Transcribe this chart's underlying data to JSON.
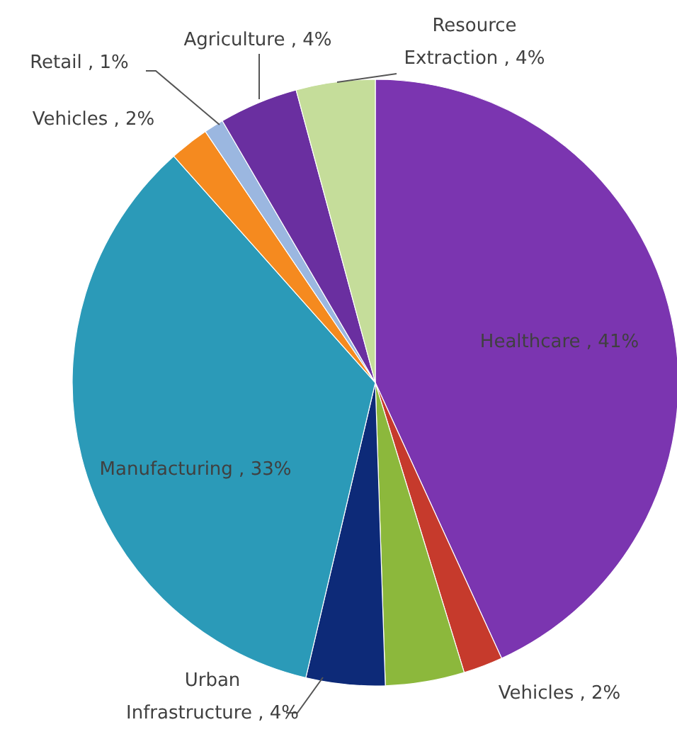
{
  "chart_data": {
    "type": "pie",
    "categories": [
      "Healthcare",
      "Vehicles",
      null,
      "Urban Infrastructure",
      "Manufacturing",
      "Vehicles",
      "Retail",
      "Agriculture",
      "Resource Extraction"
    ],
    "values": [
      41,
      2,
      4,
      4,
      33,
      2,
      1,
      4,
      4
    ],
    "value_labels": [
      "41%",
      "2%",
      null,
      "4%",
      "33%",
      "2%",
      "1%",
      "4%",
      "4%"
    ],
    "colors": [
      "#7b35b0",
      "#c63a2c",
      "#8cb83c",
      "#0d2a78",
      "#2b9ab8",
      "#f58a1f",
      "#9bb7e0",
      "#6a2fa0",
      "#c5dd9a"
    ]
  }
}
